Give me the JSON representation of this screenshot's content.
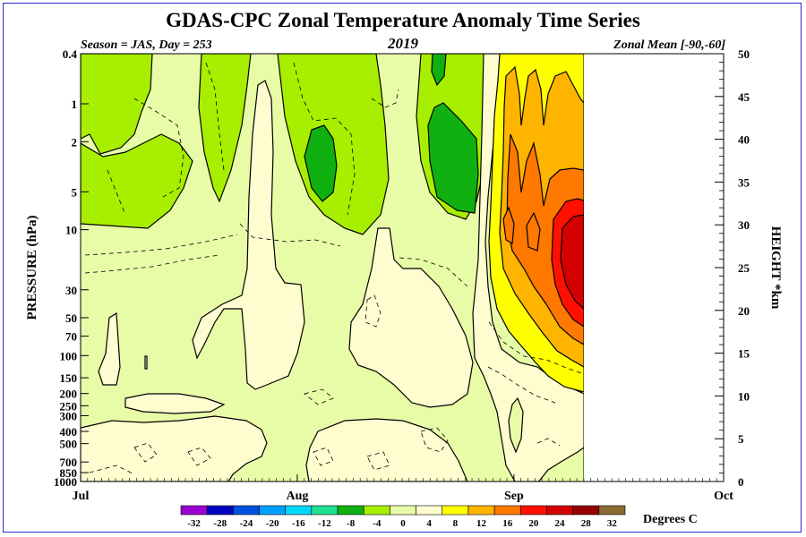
{
  "chart_data": {
    "type": "heatmap",
    "title": "GDAS-CPC Zonal Temperature Anomaly Time Series",
    "subtitle_left": "Season = JAS, Day = 253",
    "subtitle_center": "2019",
    "subtitle_right": "Zonal Mean [-90,-60]",
    "ylabel_left": "PRESSURE (hPa)",
    "ylabel_right": "HEIGHT *km",
    "x_ticks": [
      "Jul",
      "Aug",
      "Sep",
      "Oct"
    ],
    "x_tick_days": [
      0,
      31,
      62,
      92
    ],
    "data_end_day": 72,
    "pressure_ticks": [
      "0.4",
      "1",
      "2",
      "5",
      "10",
      "30",
      "50",
      "70",
      "100",
      "150",
      "200",
      "250",
      "300",
      "400",
      "500",
      "700",
      "850",
      "1000"
    ],
    "pressure_tick_values": [
      0.4,
      1,
      2,
      5,
      10,
      30,
      50,
      70,
      100,
      150,
      200,
      250,
      300,
      400,
      500,
      700,
      850,
      1000
    ],
    "height_ticks": [
      "0",
      "5",
      "10",
      "15",
      "20",
      "25",
      "30",
      "35",
      "40",
      "45",
      "50"
    ],
    "height_tick_values": [
      0,
      5,
      10,
      15,
      20,
      25,
      30,
      35,
      40,
      45,
      50
    ],
    "colorbar_labels": [
      "-32",
      "-28",
      "-24",
      "-20",
      "-16",
      "-12",
      "-8",
      "-4",
      "0",
      "4",
      "8",
      "12",
      "16",
      "20",
      "24",
      "28",
      "32"
    ],
    "colorbar_colors": [
      "#9a00d0",
      "#0000c0",
      "#0050e0",
      "#00a0ff",
      "#00d8f8",
      "#20e090",
      "#10b010",
      "#a8ee00",
      "#e8fca8",
      "#fffcd0",
      "#ffff00",
      "#ffb400",
      "#ff7800",
      "#ff1000",
      "#d40000",
      "#960000",
      "#8a6a30"
    ],
    "colorbar_unit": "Degrees C",
    "contour_interval": 4,
    "features": [
      {
        "level_hpa": 18,
        "day": 71,
        "anomaly": 22
      },
      {
        "level_hpa": 2,
        "day": 43,
        "anomaly": -10
      },
      {
        "level_hpa": 2,
        "day": 56,
        "anomaly": -10
      },
      {
        "level_hpa": 0.5,
        "day": 55,
        "anomaly": -9
      }
    ]
  }
}
